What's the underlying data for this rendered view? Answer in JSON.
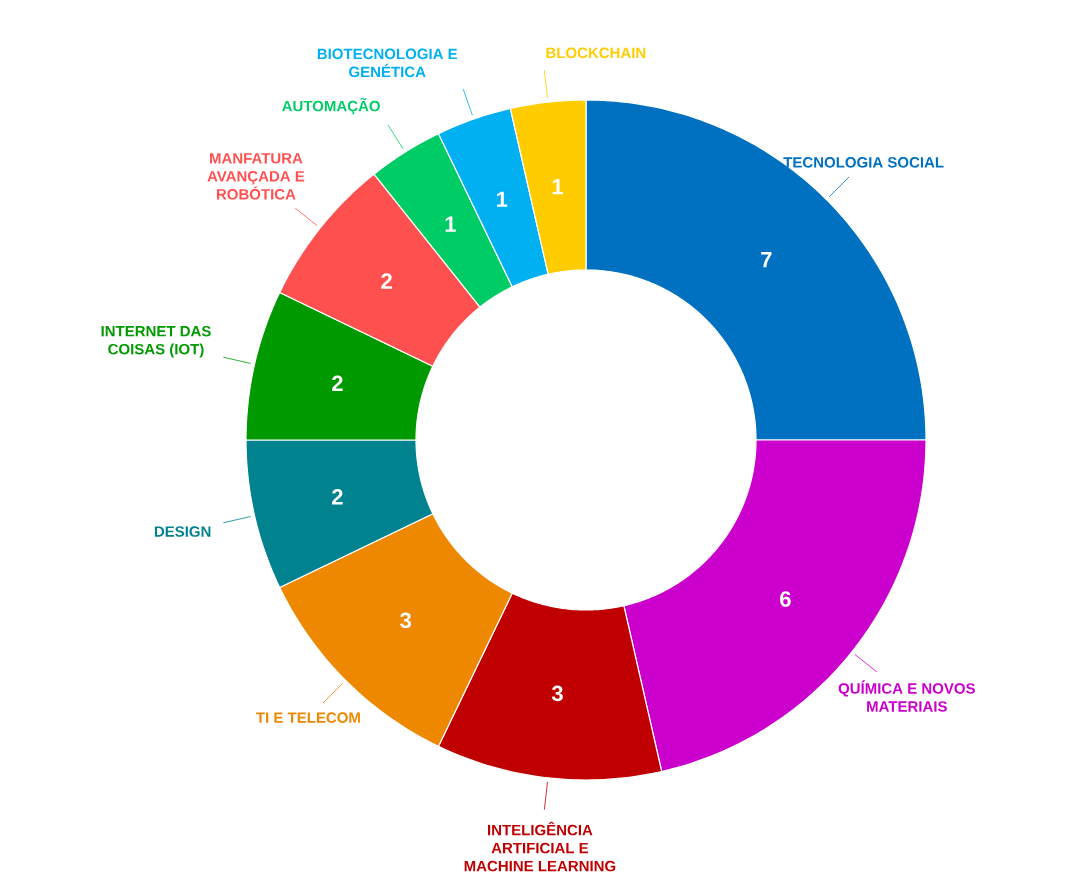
{
  "chart_data": {
    "type": "donut",
    "categories": [
      "TECNOLOGIA SOCIAL",
      "QUÍMICA E NOVOS MATERIAIS",
      "INTELIGÊNCIA ARTIFICIAL E MACHINE LEARNING",
      "TI E TELECOM",
      "DESIGN",
      "INTERNET DAS COISAS (IOT)",
      "MANFATURA AVANÇADA E ROBÓTICA",
      "AUTOMAÇÃO",
      "BIOTECNOLOGIA E GENÉTICA",
      "BLOCKCHAIN"
    ],
    "values": [
      7,
      6,
      3,
      3,
      2,
      2,
      2,
      1,
      1,
      1
    ],
    "colors": [
      "#0070c0",
      "#cc00cc",
      "#c00000",
      "#ee8800",
      "#00838f",
      "#009900",
      "#ff5050",
      "#00cc66",
      "#00b0f0",
      "#ffcc00"
    ],
    "data_labels": true
  }
}
